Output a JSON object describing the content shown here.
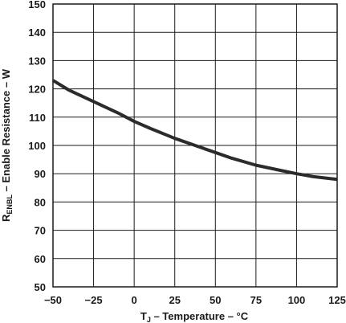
{
  "chart_data": {
    "type": "line",
    "title": "",
    "xlabel": {
      "main": "T",
      "subscript": "J",
      "rest": " – Temperature – °C"
    },
    "ylabel": {
      "main": "R",
      "subscript": "ENBL",
      "rest": " – Enable Resistance – W"
    },
    "xlim": [
      -50,
      125
    ],
    "ylim": [
      50,
      150
    ],
    "xticks": [
      -50,
      -25,
      0,
      25,
      50,
      75,
      100,
      125
    ],
    "xtick_labels": [
      "−50",
      "−25",
      "0",
      "25",
      "50",
      "75",
      "100",
      "125"
    ],
    "yticks": [
      50,
      60,
      70,
      80,
      90,
      100,
      110,
      120,
      130,
      140,
      150
    ],
    "ytick_labels": [
      "50",
      "60",
      "70",
      "80",
      "90",
      "100",
      "110",
      "120",
      "130",
      "140",
      "150"
    ],
    "grid": true,
    "series": [
      {
        "color": "#2b2b2b",
        "x": [
          -50,
          -40,
          -25,
          -10,
          0,
          10,
          25,
          40,
          50,
          60,
          75,
          90,
          100,
          110,
          125
        ],
        "y": [
          123,
          119.5,
          115.5,
          111.5,
          108.5,
          106,
          102.5,
          99.5,
          97.5,
          95.5,
          93,
          91.2,
          90,
          89,
          88
        ]
      }
    ]
  }
}
